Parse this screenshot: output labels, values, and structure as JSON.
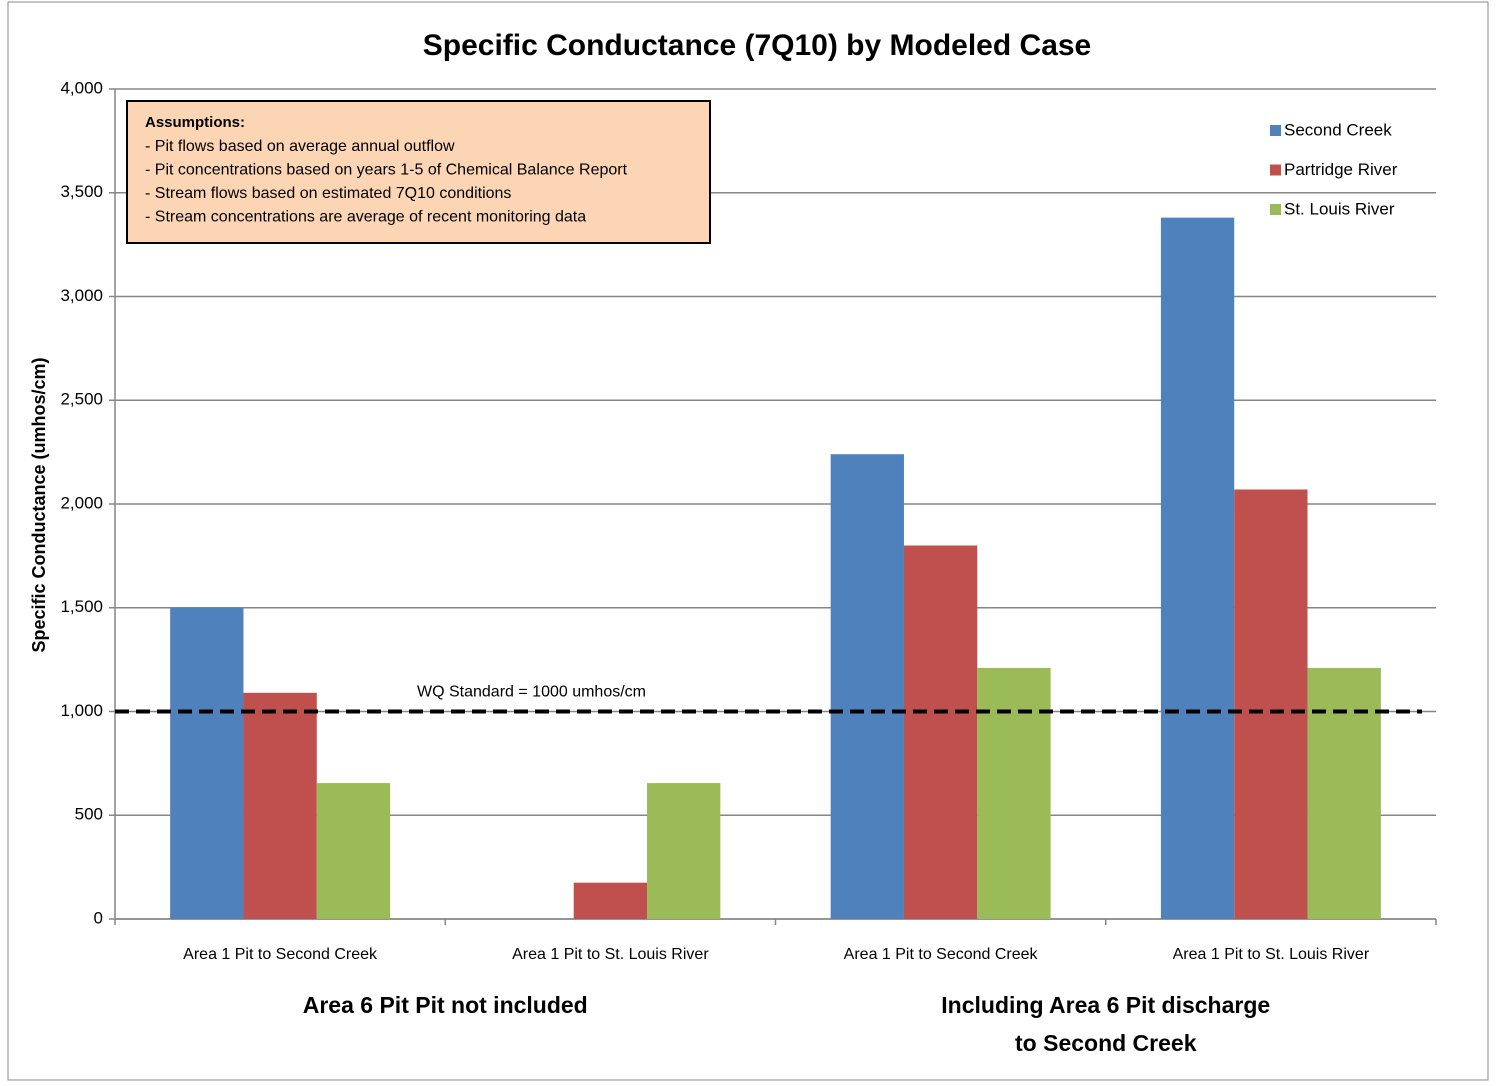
{
  "chart_data": {
    "type": "bar",
    "title": "Specific Conductance (7Q10) by Modeled Case",
    "y_label": "Specific Conductance (umhos/cm)",
    "categories": [
      "Area 1 Pit to Second Creek",
      "Area 1 Pit to St. Louis River",
      "Area 1 Pit to Second Creek",
      "Area 1 Pit to St. Louis River"
    ],
    "group_labels": [
      [
        "Area 6 Pit Pit not included"
      ],
      [
        "Including Area 6 Pit discharge",
        "to Second Creek"
      ]
    ],
    "series": [
      {
        "name": "Second Creek",
        "color": "#4f81bd",
        "values": [
          1500,
          null,
          2240,
          3380
        ]
      },
      {
        "name": "Partridge River",
        "color": "#c0504d",
        "values": [
          1090,
          175,
          1800,
          2070
        ]
      },
      {
        "name": "St. Louis River",
        "color": "#9bbb59",
        "values": [
          655,
          655,
          1210,
          1210
        ]
      }
    ],
    "ylim": [
      0,
      4000
    ],
    "yticks": [
      0,
      500,
      {
        "value": 1000,
        "label": "1,000"
      },
      {
        "value": 1500,
        "label": "1,500"
      },
      {
        "value": 2000,
        "label": "2,000"
      },
      {
        "value": 2500,
        "label": "2,500"
      },
      {
        "value": 3000,
        "label": "3,000"
      },
      {
        "value": 3500,
        "label": "3,500"
      },
      {
        "value": 4000,
        "label": "4,000"
      }
    ],
    "grid": true,
    "legend_position": "top-right",
    "reference_line": {
      "value": 1000,
      "label": "WQ Standard = 1000 umhos/cm"
    },
    "annotation": {
      "title": "Assumptions:",
      "lines": [
        "- Pit flows based on average annual outflow",
        "- Pit concentrations  based on years 1-5 of Chemical Balance Report",
        "- Stream flows based on estimated 7Q10 conditions",
        "- Stream concentrations are average of recent monitoring data"
      ]
    }
  }
}
